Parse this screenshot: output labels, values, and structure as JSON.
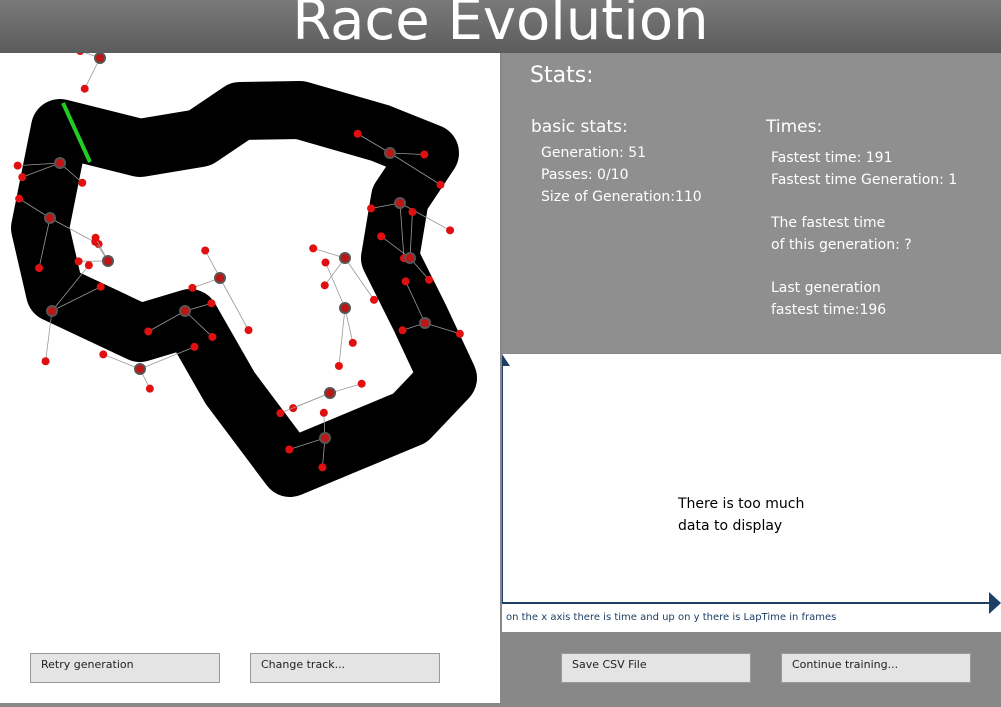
{
  "header": {
    "title": "Race Evolution"
  },
  "stats": {
    "title": "Stats:",
    "basic": {
      "title": "basic stats:",
      "items": [
        "Generation: 51",
        "Passes: 0/10",
        "Size of Generation:110"
      ]
    },
    "times": {
      "title": "Times:",
      "items": [
        "Fastest time: 191",
        "Fastest time Generation: 1",
        "The fastest time",
        "of this generation: ?",
        "Last generation",
        "fastest time:196"
      ]
    }
  },
  "graph": {
    "message": [
      "There is too much",
      "data to display"
    ],
    "caption": "on the x axis there is time and up on y there is LapTime in frames"
  },
  "buttons": [
    "Retry generation",
    "Change track...",
    "Save CSV File",
    "Continue training..."
  ]
}
